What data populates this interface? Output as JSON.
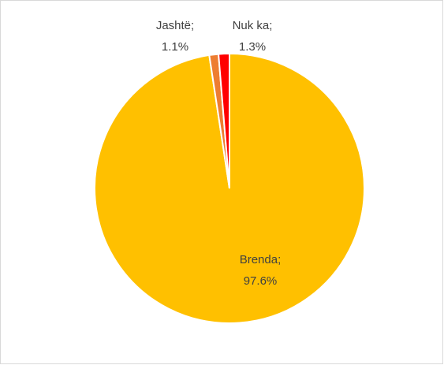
{
  "chart_data": {
    "type": "pie",
    "categories": [
      "Brenda;",
      "Jashtë;",
      "Nuk ka;"
    ],
    "values": [
      97.6,
      1.1,
      1.3
    ],
    "value_labels": [
      "97.6%",
      "1.1%",
      "1.3%"
    ],
    "colors": [
      "#FFC000",
      "#ED7D31",
      "#FF0000"
    ]
  }
}
